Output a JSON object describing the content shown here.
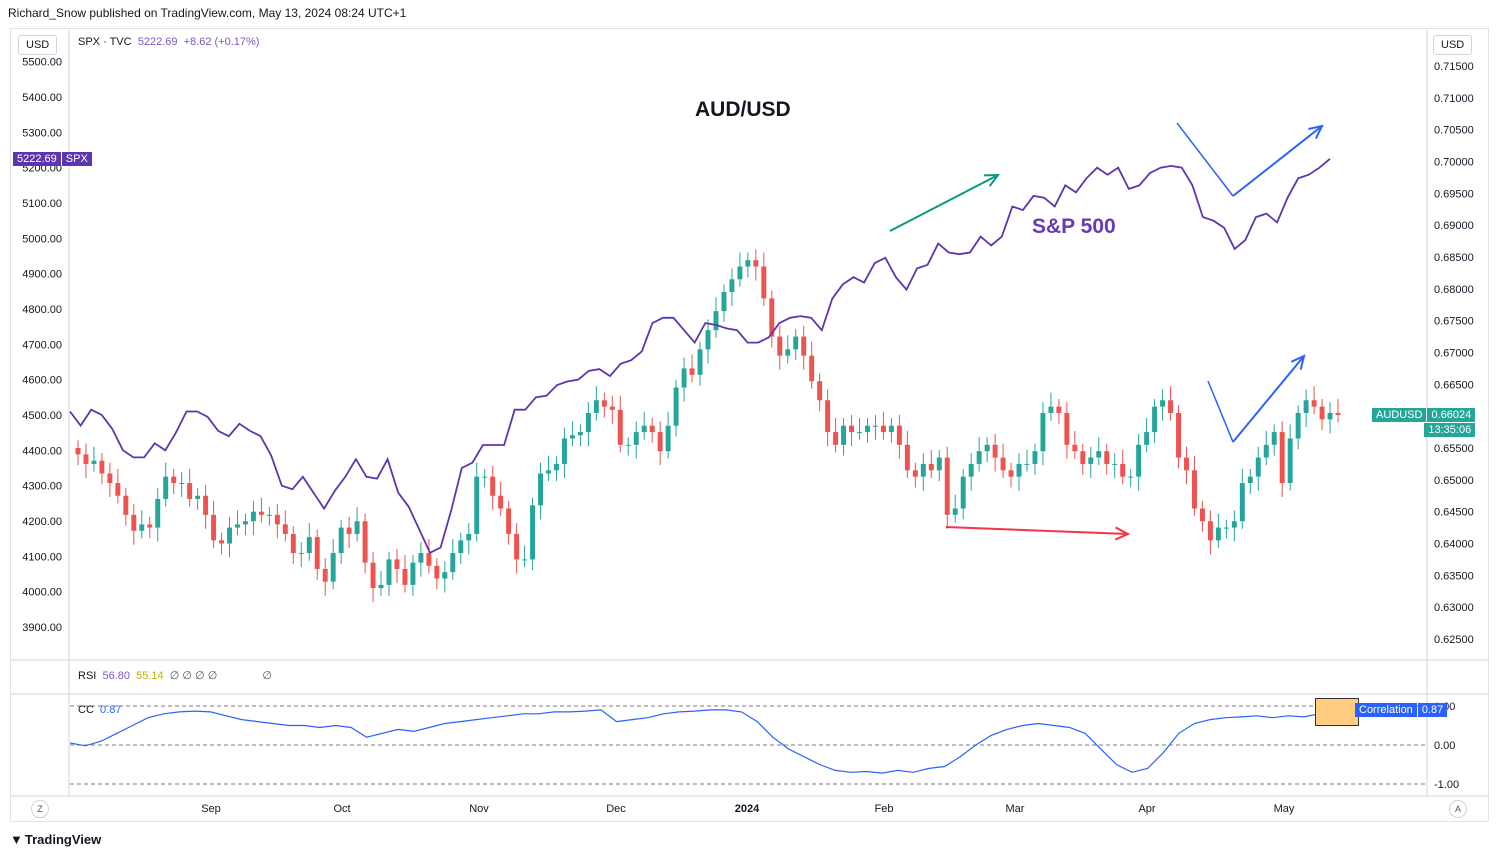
{
  "header": "Richard_Snow published on TradingView.com, May 13, 2024 08:24 UTC+1",
  "left_currency": "USD",
  "right_currency": "USD",
  "legend": {
    "symbol": "SPX · TVC",
    "price": "5222.69",
    "change": "+8.62 (+0.17%)"
  },
  "spx_tag": {
    "price": "5222.69",
    "name": "SPX",
    "color": "#5e35b1"
  },
  "audusd_tag": {
    "name": "AUDUSD",
    "price": "0.66024",
    "countdown": "13:35:06",
    "color": "#26a69a"
  },
  "annotations": {
    "aud_title": "AUD/USD",
    "sp_label": "S&P 500"
  },
  "rsi": {
    "label": "RSI",
    "v1": "56.80",
    "v2": "55.14",
    "phi": "∅ ∅ ∅ ∅",
    "phi2": "∅"
  },
  "cc": {
    "label": "CC",
    "value": "0.87",
    "tag_name": "Correlation",
    "tag_value": "0.87"
  },
  "footer": {
    "brand": "TradingView",
    "z_btn": "Z",
    "a_btn": "A"
  },
  "colors": {
    "up": "#26a69a",
    "down": "#ef5350",
    "spx_line": "#5e35b1",
    "cc_line": "#2962ff",
    "green_arrow": "#089981",
    "red_arrow": "#f23645",
    "blue_arrow": "#2962ff"
  },
  "chart_data": [
    {
      "type": "line",
      "title": "AUD/USD",
      "x_labels": [
        "Sep",
        "Oct",
        "Nov",
        "Dec",
        "2024",
        "Feb",
        "Mar",
        "Apr",
        "May"
      ],
      "left_axis_ticks": [
        "5500.00",
        "5400.00",
        "5300.00",
        "5200.00",
        "5100.00",
        "5000.00",
        "4900.00",
        "4800.00",
        "4700.00",
        "4600.00",
        "4500.00",
        "4400.00",
        "4300.00",
        "4200.00",
        "4100.00",
        "4000.00",
        "3900.00"
      ],
      "right_axis_ticks": [
        "0.71500",
        "0.71000",
        "0.70500",
        "0.70000",
        "0.69500",
        "0.69000",
        "0.68500",
        "0.68000",
        "0.67500",
        "0.67000",
        "0.66500",
        "0.66000",
        "0.65500",
        "0.65000",
        "0.64500",
        "0.64000",
        "0.63500",
        "0.63000",
        "0.62500"
      ],
      "series": [
        {
          "name": "SPX",
          "axis": "left",
          "values": [
            4510,
            4470,
            4515,
            4500,
            4460,
            4400,
            4380,
            4380,
            4420,
            4400,
            4450,
            4510,
            4510,
            4495,
            4455,
            4440,
            4475,
            4455,
            4440,
            4385,
            4300,
            4290,
            4325,
            4280,
            4235,
            4285,
            4325,
            4375,
            4325,
            4320,
            4375,
            4280,
            4240,
            4175,
            4110,
            4125,
            4230,
            4350,
            4365,
            4415,
            4415,
            4415,
            4515,
            4515,
            4550,
            4555,
            4585,
            4595,
            4600,
            4625,
            4630,
            4610,
            4645,
            4655,
            4680,
            4760,
            4775,
            4775,
            4740,
            4705,
            4760,
            4755,
            4745,
            4740,
            4705,
            4705,
            4720,
            4760,
            4775,
            4780,
            4775,
            4740,
            4830,
            4870,
            4890,
            4875,
            4930,
            4945,
            4890,
            4855,
            4915,
            4925,
            4985,
            4960,
            4955,
            4960,
            5005,
            4980,
            5005,
            5090,
            5080,
            5120,
            5115,
            5090,
            5150,
            5130,
            5170,
            5200,
            5180,
            5200,
            5140,
            5150,
            5185,
            5200,
            5205,
            5200,
            5150,
            5060,
            5050,
            5030,
            4970,
            4995,
            5060,
            5070,
            5045,
            5115,
            5170,
            5180,
            5200,
            5225
          ]
        },
        {
          "name": "AUDUSD",
          "axis": "right",
          "kind": "candlestick",
          "closes": [
            0.654,
            0.6525,
            0.653,
            0.651,
            0.6495,
            0.6475,
            0.6445,
            0.642,
            0.643,
            0.6425,
            0.647,
            0.6505,
            0.6495,
            0.6495,
            0.647,
            0.6475,
            0.6445,
            0.6405,
            0.64,
            0.6425,
            0.643,
            0.6435,
            0.645,
            0.6445,
            0.6445,
            0.643,
            0.6415,
            0.6385,
            0.6385,
            0.641,
            0.636,
            0.634,
            0.6385,
            0.6425,
            0.6415,
            0.6435,
            0.637,
            0.633,
            0.6335,
            0.6375,
            0.636,
            0.6335,
            0.637,
            0.6385,
            0.6365,
            0.6345,
            0.6355,
            0.6385,
            0.6405,
            0.6415,
            0.6505,
            0.6505,
            0.6475,
            0.6455,
            0.6415,
            0.6375,
            0.6375,
            0.646,
            0.651,
            0.6515,
            0.6525,
            0.6565,
            0.657,
            0.6575,
            0.6605,
            0.6625,
            0.6615,
            0.661,
            0.6555,
            0.6555,
            0.6575,
            0.6585,
            0.6575,
            0.6545,
            0.6585,
            0.6645,
            0.6675,
            0.6665,
            0.6705,
            0.6735,
            0.6765,
            0.6795,
            0.6815,
            0.6835,
            0.6845,
            0.6835,
            0.6785,
            0.6725,
            0.6695,
            0.6705,
            0.6725,
            0.6695,
            0.6655,
            0.6625,
            0.6575,
            0.6555,
            0.6585,
            0.6575,
            0.6575,
            0.6585,
            0.6585,
            0.6575,
            0.6585,
            0.6555,
            0.6515,
            0.6505,
            0.6525,
            0.6515,
            0.6535,
            0.6445,
            0.6455,
            0.6505,
            0.6525,
            0.6545,
            0.6555,
            0.6535,
            0.6515,
            0.6505,
            0.6525,
            0.6525,
            0.6545,
            0.6605,
            0.6615,
            0.6605,
            0.6555,
            0.6545,
            0.6525,
            0.6535,
            0.6545,
            0.6525,
            0.6525,
            0.6505,
            0.6505,
            0.6555,
            0.6575,
            0.6615,
            0.6625,
            0.6605,
            0.6535,
            0.6515,
            0.6455,
            0.6435,
            0.6405,
            0.6425,
            0.6425,
            0.6435,
            0.6495,
            0.6505,
            0.6535,
            0.6555,
            0.6575,
            0.6495,
            0.6565,
            0.6605,
            0.6625,
            0.6615,
            0.6595,
            0.6605,
            0.6602
          ]
        },
        {
          "name": "Correlation",
          "axis": "cc",
          "values": [
            0.05,
            -0.02,
            0.1,
            0.3,
            0.5,
            0.7,
            0.8,
            0.85,
            0.87,
            0.85,
            0.75,
            0.65,
            0.6,
            0.55,
            0.5,
            0.5,
            0.45,
            0.5,
            0.45,
            0.2,
            0.3,
            0.4,
            0.35,
            0.45,
            0.55,
            0.6,
            0.65,
            0.7,
            0.75,
            0.8,
            0.8,
            0.85,
            0.85,
            0.87,
            0.9,
            0.6,
            0.65,
            0.7,
            0.8,
            0.85,
            0.87,
            0.9,
            0.9,
            0.85,
            0.6,
            0.2,
            -0.1,
            -0.3,
            -0.5,
            -0.65,
            -0.7,
            -0.68,
            -0.72,
            -0.65,
            -0.7,
            -0.6,
            -0.55,
            -0.3,
            0.0,
            0.25,
            0.4,
            0.5,
            0.55,
            0.5,
            0.45,
            0.3,
            -0.1,
            -0.5,
            -0.7,
            -0.6,
            -0.2,
            0.3,
            0.55,
            0.65,
            0.7,
            0.72,
            0.75,
            0.7,
            0.75,
            0.72,
            0.8,
            0.87
          ]
        }
      ]
    }
  ]
}
